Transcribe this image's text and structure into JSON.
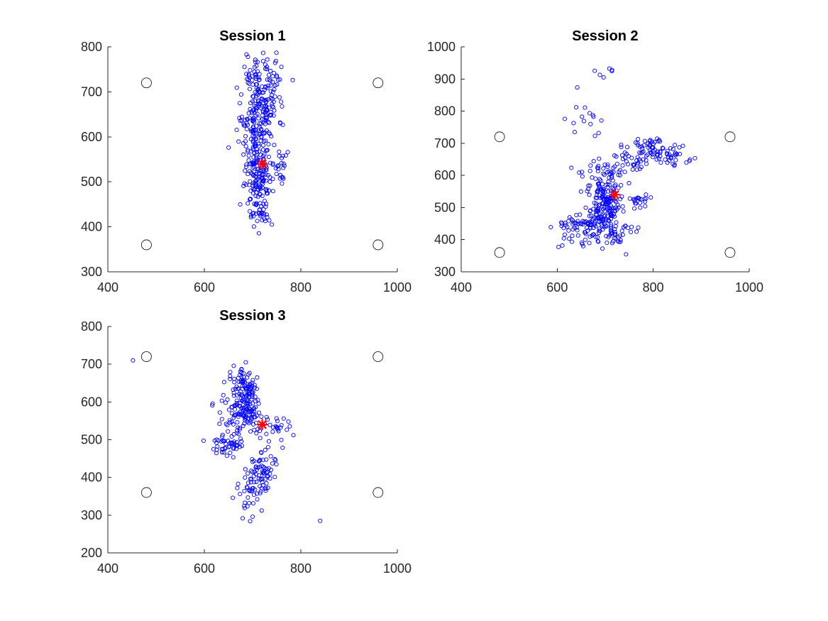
{
  "chart_data": [
    {
      "type": "scatter",
      "title": "Session 1",
      "xlabel": "",
      "ylabel": "",
      "xlim": [
        400,
        1000
      ],
      "ylim": [
        300,
        800
      ],
      "xticks": [
        "400",
        "600",
        "800",
        "1000"
      ],
      "yticks": [
        "300",
        "400",
        "500",
        "600",
        "700",
        "800"
      ],
      "grid": false,
      "seed": 11,
      "series": [
        {
          "role": "gaze-samples",
          "marker": "circle",
          "color": "#0000ff",
          "clusters": [
            {
              "cx": 718,
              "cy": 672,
              "sx": 18,
              "sy": 42,
              "n": 150
            },
            {
              "cx": 712,
              "cy": 515,
              "sx": 14,
              "sy": 38,
              "n": 150
            },
            {
              "cx": 722,
              "cy": 745,
              "sx": 22,
              "sy": 25,
              "n": 40
            },
            {
              "cx": 700,
              "cy": 600,
              "sx": 22,
              "sy": 30,
              "n": 60
            },
            {
              "cx": 718,
              "cy": 430,
              "sx": 10,
              "sy": 20,
              "n": 25
            },
            {
              "cx": 755,
              "cy": 540,
              "sx": 12,
              "sy": 20,
              "n": 25
            }
          ]
        },
        {
          "role": "calibration-targets",
          "marker": "circle-open",
          "color": "#000000",
          "x": [
            480,
            960,
            480,
            960
          ],
          "y": [
            720,
            720,
            360,
            360
          ]
        },
        {
          "role": "center-target",
          "marker": "asterisk",
          "color": "#ff0000",
          "x": [
            720
          ],
          "y": [
            540
          ]
        }
      ]
    },
    {
      "type": "scatter",
      "title": "Session 2",
      "xlabel": "",
      "ylabel": "",
      "xlim": [
        400,
        1000
      ],
      "ylim": [
        300,
        1000
      ],
      "xticks": [
        "400",
        "600",
        "800",
        "1000"
      ],
      "yticks": [
        "300",
        "400",
        "500",
        "600",
        "700",
        "800",
        "900",
        "1000"
      ],
      "grid": false,
      "seed": 23,
      "series": [
        {
          "role": "gaze-samples",
          "marker": "circle",
          "color": "#0000ff",
          "clusters": [
            {
              "cx": 700,
              "cy": 510,
              "sx": 15,
              "sy": 40,
              "n": 150
            },
            {
              "cx": 665,
              "cy": 445,
              "sx": 22,
              "sy": 22,
              "n": 70
            },
            {
              "cx": 720,
              "cy": 415,
              "sx": 20,
              "sy": 22,
              "n": 40
            },
            {
              "cx": 790,
              "cy": 690,
              "sx": 15,
              "sy": 18,
              "n": 40
            },
            {
              "cx": 835,
              "cy": 660,
              "sx": 22,
              "sy": 18,
              "n": 40
            },
            {
              "cx": 745,
              "cy": 640,
              "sx": 30,
              "sy": 20,
              "n": 40
            },
            {
              "cx": 680,
              "cy": 590,
              "sx": 30,
              "sy": 40,
              "n": 40
            },
            {
              "cx": 620,
              "cy": 430,
              "sx": 15,
              "sy": 30,
              "n": 20
            },
            {
              "cx": 665,
              "cy": 780,
              "sx": 25,
              "sy": 45,
              "n": 15
            },
            {
              "cx": 700,
              "cy": 920,
              "sx": 15,
              "sy": 10,
              "n": 6
            },
            {
              "cx": 770,
              "cy": 520,
              "sx": 15,
              "sy": 15,
              "n": 20
            }
          ]
        },
        {
          "role": "calibration-targets",
          "marker": "circle-open",
          "color": "#000000",
          "x": [
            480,
            960,
            480,
            960
          ],
          "y": [
            720,
            720,
            360,
            360
          ]
        },
        {
          "role": "center-target",
          "marker": "asterisk",
          "color": "#ff0000",
          "x": [
            720
          ],
          "y": [
            540
          ]
        }
      ]
    },
    {
      "type": "scatter",
      "title": "Session 3",
      "xlabel": "",
      "ylabel": "",
      "xlim": [
        400,
        1000
      ],
      "ylim": [
        200,
        800
      ],
      "xticks": [
        "400",
        "600",
        "800",
        "1000"
      ],
      "yticks": [
        "200",
        "300",
        "400",
        "500",
        "600",
        "700",
        "800"
      ],
      "grid": false,
      "seed": 37,
      "series": [
        {
          "role": "gaze-samples",
          "marker": "circle",
          "color": "#0000ff",
          "clusters": [
            {
              "cx": 688,
              "cy": 620,
              "sx": 10,
              "sy": 35,
              "n": 110
            },
            {
              "cx": 675,
              "cy": 560,
              "sx": 18,
              "sy": 20,
              "n": 60
            },
            {
              "cx": 648,
              "cy": 490,
              "sx": 16,
              "sy": 18,
              "n": 50
            },
            {
              "cx": 722,
              "cy": 430,
              "sx": 12,
              "sy": 20,
              "n": 50
            },
            {
              "cx": 700,
              "cy": 380,
              "sx": 18,
              "sy": 30,
              "n": 40
            },
            {
              "cx": 745,
              "cy": 520,
              "sx": 18,
              "sy": 20,
              "n": 30
            },
            {
              "cx": 660,
              "cy": 630,
              "sx": 20,
              "sy": 30,
              "n": 30
            },
            {
              "cx": 700,
              "cy": 330,
              "sx": 10,
              "sy": 22,
              "n": 10
            }
          ],
          "x": [
            452,
            840
          ],
          "y": [
            710,
            285
          ]
        },
        {
          "role": "calibration-targets",
          "marker": "circle-open",
          "color": "#000000",
          "x": [
            480,
            960,
            480,
            960
          ],
          "y": [
            720,
            720,
            360,
            360
          ]
        },
        {
          "role": "center-target",
          "marker": "asterisk",
          "color": "#ff0000",
          "x": [
            720
          ],
          "y": [
            540
          ]
        }
      ]
    }
  ]
}
